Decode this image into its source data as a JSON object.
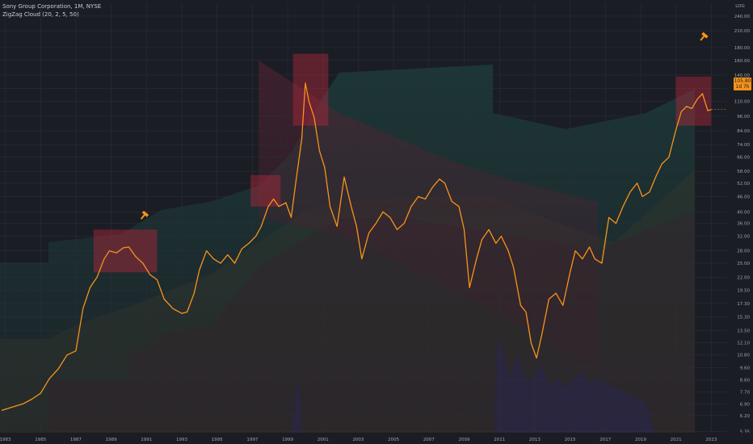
{
  "chart_data": {
    "type": "line",
    "title": "Sony Group Corporation, 1M, NYSE",
    "indicator": "ZigZag Cloud (20, 2, 5, 50)",
    "y_scale": "log",
    "ylim": [
      5.3,
      270
    ],
    "y_ticks": [
      "5.35",
      "6.20",
      "6.90",
      "7.70",
      "8.60",
      "9.60",
      "10.80",
      "12.10",
      "13.50",
      "15.30",
      "17.30",
      "19.50",
      "22.00",
      "25.00",
      "28.00",
      "32.00",
      "36.00",
      "40.00",
      "46.00",
      "52.00",
      "58.00",
      "66.00",
      "74.00",
      "84.00",
      "96.00",
      "110.00",
      "124.00",
      "140.00",
      "160.00",
      "180.00",
      "210.00",
      "240.00"
    ],
    "y_axis_top_label": "LOG",
    "x_ticks": [
      "1983",
      "1985",
      "1987",
      "1989",
      "1991",
      "1993",
      "1995",
      "1997",
      "1999",
      "2001",
      "2003",
      "2005",
      "2007",
      "2009",
      "2011",
      "2013",
      "2015",
      "2017",
      "2019",
      "2021",
      "2023"
    ],
    "xlim": [
      1982.7,
      2023.9
    ],
    "series": [
      {
        "name": "SONY",
        "color": "#f7931a",
        "x": [
          1982.8,
          1983.4,
          1984.0,
          1984.5,
          1985.0,
          1985.5,
          1986.0,
          1986.5,
          1987.0,
          1987.4,
          1987.8,
          1988.2,
          1988.6,
          1988.9,
          1989.3,
          1989.7,
          1990.0,
          1990.4,
          1990.8,
          1991.2,
          1991.6,
          1992.0,
          1992.5,
          1993.0,
          1993.3,
          1993.7,
          1994.0,
          1994.4,
          1994.8,
          1995.2,
          1995.6,
          1996.0,
          1996.4,
          1996.8,
          1997.2,
          1997.5,
          1997.9,
          1998.2,
          1998.5,
          1998.9,
          1999.2,
          1999.5,
          1999.8,
          2000.0,
          2000.2,
          2000.5,
          2000.8,
          2001.1,
          2001.4,
          2001.8,
          2002.2,
          2002.6,
          2002.9,
          2003.2,
          2003.6,
          2004.0,
          2004.4,
          2004.8,
          2005.2,
          2005.6,
          2006.0,
          2006.4,
          2006.8,
          2007.2,
          2007.6,
          2007.9,
          2008.3,
          2008.7,
          2009.0,
          2009.3,
          2009.7,
          2010.0,
          2010.4,
          2010.8,
          2011.1,
          2011.5,
          2011.8,
          2012.2,
          2012.5,
          2012.8,
          2013.1,
          2013.4,
          2013.8,
          2014.2,
          2014.6,
          2015.0,
          2015.3,
          2015.7,
          2016.1,
          2016.4,
          2016.8,
          2017.2,
          2017.6,
          2018.0,
          2018.4,
          2018.8,
          2019.1,
          2019.5,
          2019.9,
          2020.2,
          2020.6,
          2021.0,
          2021.3,
          2021.6,
          2021.9,
          2022.2,
          2022.5,
          2022.8,
          2023.0
        ],
        "values": [
          6.5,
          6.7,
          6.9,
          7.2,
          7.6,
          8.7,
          9.5,
          10.8,
          11.2,
          16.5,
          20.0,
          22.0,
          26.0,
          28.0,
          27.5,
          28.8,
          29.0,
          26.5,
          25.0,
          22.5,
          21.5,
          18.0,
          16.5,
          15.8,
          16.0,
          19.0,
          23.5,
          28.0,
          26.0,
          25.0,
          27.0,
          25.0,
          28.5,
          30.0,
          32.0,
          35.0,
          42.0,
          45.0,
          42.0,
          43.5,
          38.0,
          55.0,
          78.0,
          130.0,
          110.0,
          95.0,
          70.0,
          60.0,
          42.0,
          35.0,
          55.0,
          42.0,
          35.0,
          26.0,
          33.0,
          36.0,
          40.0,
          38.0,
          34.0,
          36.0,
          42.0,
          46.0,
          45.0,
          50.0,
          54.0,
          52.0,
          44.0,
          42.0,
          34.0,
          20.0,
          26.0,
          31.0,
          34.0,
          30.0,
          32.0,
          28.0,
          24.0,
          17.0,
          16.0,
          12.0,
          10.5,
          13.0,
          18.0,
          19.0,
          17.0,
          23.0,
          28.0,
          26.0,
          29.0,
          26.0,
          25.0,
          38.0,
          36.0,
          42.0,
          48.0,
          52.0,
          46.0,
          48.0,
          56.0,
          62.0,
          66.0,
          85.0,
          100.0,
          105.0,
          103.0,
          112.0,
          118.0,
          101.0,
          102.0
        ]
      }
    ],
    "last_price_label": "105.80",
    "last_price_sublabel": "1d 7h",
    "highlight_boxes": [
      {
        "x0": 1988.0,
        "x1": 1991.6,
        "y0": 23.0,
        "y1": 34.0
      },
      {
        "x0": 1996.9,
        "x1": 1998.6,
        "y0": 42.0,
        "y1": 56.0
      },
      {
        "x0": 1999.3,
        "x1": 2001.3,
        "y0": 88.0,
        "y1": 170.0
      },
      {
        "x0": 2021.0,
        "x1": 2023.0,
        "y0": 88.0,
        "y1": 138.0
      }
    ],
    "markers": [
      {
        "x": 1990.9,
        "y": 39.0
      },
      {
        "x": 2022.6,
        "y": 200.0
      }
    ],
    "grid": true
  }
}
